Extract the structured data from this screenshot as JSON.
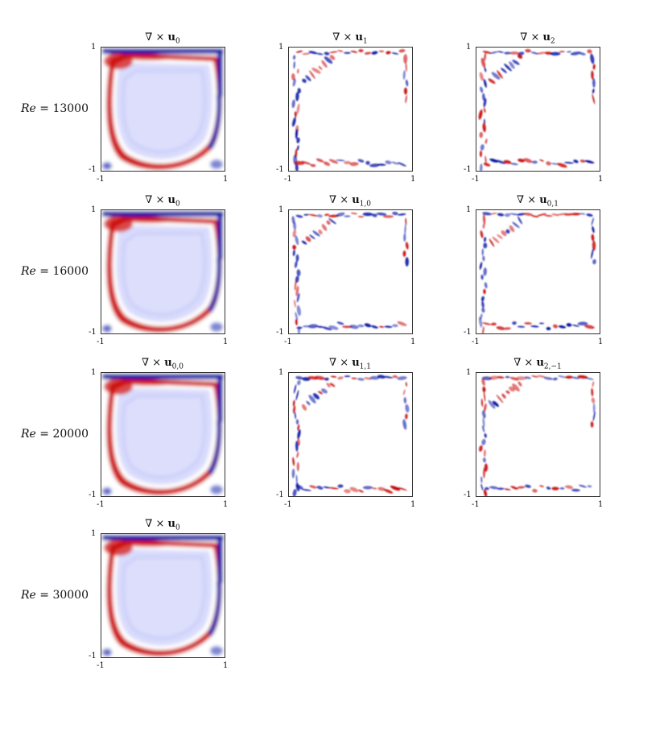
{
  "rows": [
    {
      "label_prefix": "Re",
      "label_eq": " = ",
      "label_value": "13000",
      "panels": [
        {
          "title_sub": "0"
        },
        {
          "title_sub": "1"
        },
        {
          "title_sub": "2"
        }
      ]
    },
    {
      "label_prefix": "Re",
      "label_eq": " = ",
      "label_value": "16000",
      "panels": [
        {
          "title_sub": "0"
        },
        {
          "title_sub": "1,0"
        },
        {
          "title_sub": "0,1"
        }
      ]
    },
    {
      "label_prefix": "Re",
      "label_eq": " = ",
      "label_value": "20000",
      "panels": [
        {
          "title_sub": "0,0"
        },
        {
          "title_sub": "1,1"
        },
        {
          "title_sub": "2,−1"
        }
      ]
    },
    {
      "label_prefix": "Re",
      "label_eq": " = ",
      "label_value": "30000",
      "panels": [
        {
          "title_sub": "0"
        }
      ]
    }
  ],
  "title_prefix": "∇ × ",
  "title_vector": "u",
  "tick_min": "-1",
  "tick_max": "1",
  "colors": {
    "positive": "#cc0000",
    "negative": "#0011aa",
    "background": "#d9dbfc"
  }
}
